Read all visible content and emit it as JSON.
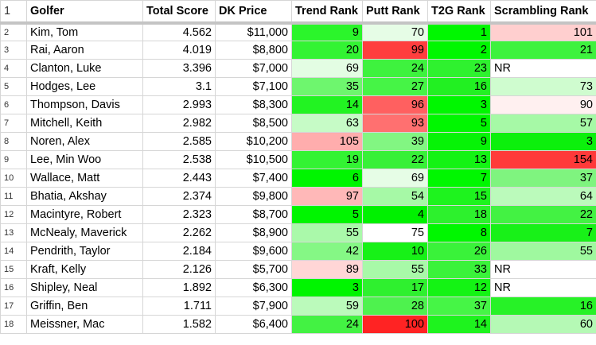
{
  "headers": {
    "row_number": "1",
    "golfer": "Golfer",
    "total_score": "Total Score",
    "dk_price": "DK Price",
    "trend_rank": "Trend Rank",
    "putt_rank": "Putt Rank",
    "t2g_rank": "T2G Rank",
    "scrambling_rank": "Scrambling Rank"
  },
  "colors": {
    "green_strong": "#00ff00",
    "red_strong": "#ff0000",
    "white": "#ffffff",
    "grid": "#d6d6d6"
  },
  "rows": [
    {
      "n": "2",
      "golfer": "Kim, Tom",
      "score": "4.562",
      "price": "$11,000",
      "trend": "9",
      "putt": "70",
      "t2g": "1",
      "scr": "101"
    },
    {
      "n": "3",
      "golfer": "Rai, Aaron",
      "score": "4.019",
      "price": "$8,800",
      "trend": "20",
      "putt": "99",
      "t2g": "2",
      "scr": "21"
    },
    {
      "n": "4",
      "golfer": "Clanton, Luke",
      "score": "3.396",
      "price": "$7,000",
      "trend": "69",
      "putt": "24",
      "t2g": "23",
      "scr": "NR"
    },
    {
      "n": "5",
      "golfer": "Hodges, Lee",
      "score": "3.1",
      "price": "$7,100",
      "trend": "35",
      "putt": "27",
      "t2g": "16",
      "scr": "73"
    },
    {
      "n": "6",
      "golfer": "Thompson, Davis",
      "score": "2.993",
      "price": "$8,300",
      "trend": "14",
      "putt": "96",
      "t2g": "3",
      "scr": "90"
    },
    {
      "n": "7",
      "golfer": "Mitchell, Keith",
      "score": "2.982",
      "price": "$8,500",
      "trend": "63",
      "putt": "93",
      "t2g": "5",
      "scr": "57"
    },
    {
      "n": "8",
      "golfer": "Noren, Alex",
      "score": "2.585",
      "price": "$10,200",
      "trend": "105",
      "putt": "39",
      "t2g": "9",
      "scr": "3"
    },
    {
      "n": "9",
      "golfer": "Lee, Min Woo",
      "score": "2.538",
      "price": "$10,500",
      "trend": "19",
      "putt": "22",
      "t2g": "13",
      "scr": "154"
    },
    {
      "n": "10",
      "golfer": "Wallace, Matt",
      "score": "2.443",
      "price": "$7,400",
      "trend": "6",
      "putt": "69",
      "t2g": "7",
      "scr": "37"
    },
    {
      "n": "11",
      "golfer": "Bhatia, Akshay",
      "score": "2.374",
      "price": "$9,800",
      "trend": "97",
      "putt": "54",
      "t2g": "15",
      "scr": "64"
    },
    {
      "n": "12",
      "golfer": "Macintyre, Robert",
      "score": "2.323",
      "price": "$8,700",
      "trend": "5",
      "putt": "4",
      "t2g": "18",
      "scr": "22"
    },
    {
      "n": "13",
      "golfer": "McNealy, Maverick",
      "score": "2.262",
      "price": "$8,900",
      "trend": "55",
      "putt": "75",
      "t2g": "8",
      "scr": "7"
    },
    {
      "n": "14",
      "golfer": "Pendrith, Taylor",
      "score": "2.184",
      "price": "$9,600",
      "trend": "42",
      "putt": "10",
      "t2g": "26",
      "scr": "55"
    },
    {
      "n": "15",
      "golfer": "Kraft, Kelly",
      "score": "2.126",
      "price": "$5,700",
      "trend": "89",
      "putt": "55",
      "t2g": "33",
      "scr": "NR"
    },
    {
      "n": "16",
      "golfer": "Shipley, Neal",
      "score": "1.892",
      "price": "$6,300",
      "trend": "3",
      "putt": "17",
      "t2g": "12",
      "scr": "NR"
    },
    {
      "n": "17",
      "golfer": "Griffin, Ben",
      "score": "1.711",
      "price": "$7,900",
      "trend": "59",
      "putt": "28",
      "t2g": "37",
      "scr": "16"
    },
    {
      "n": "18",
      "golfer": "Meissner, Mac",
      "score": "1.582",
      "price": "$6,400",
      "trend": "24",
      "putt": "100",
      "t2g": "14",
      "scr": "60"
    }
  ],
  "cell_fills": [
    {
      "trend": "#2bf52b",
      "putt": "#e6fde6",
      "t2g": "#00f700",
      "scr": "#ffcfcf"
    },
    {
      "trend": "#33f333",
      "putt": "#ff3e3e",
      "t2g": "#00f700",
      "scr": "#3ef23e"
    },
    {
      "trend": "#e3fde3",
      "putt": "#3ef23e",
      "t2g": "#2ff12f",
      "scr": "#ffffff"
    },
    {
      "trend": "#6ef66e",
      "putt": "#46f446",
      "t2g": "#22f022",
      "scr": "#cffccf"
    },
    {
      "trend": "#22f322",
      "putt": "#ff6060",
      "t2g": "#00f700",
      "scr": "#fff0f0"
    },
    {
      "trend": "#c6fbc6",
      "putt": "#ff7070",
      "t2g": "#00f700",
      "scr": "#a6f9a6"
    },
    {
      "trend": "#ffadad",
      "putt": "#82f682",
      "t2g": "#06f306",
      "scr": "#0cf00c"
    },
    {
      "trend": "#33f333",
      "putt": "#38f038",
      "t2g": "#14f314",
      "scr": "#ff3a3a"
    },
    {
      "trend": "#00f500",
      "putt": "#e6fde6",
      "t2g": "#00f700",
      "scr": "#7ff47f"
    },
    {
      "trend": "#ffb8b8",
      "putt": "#a6f9a6",
      "t2g": "#1ef31e",
      "scr": "#bbfabb"
    },
    {
      "trend": "#00f500",
      "putt": "#00f100",
      "t2g": "#2df12d",
      "scr": "#43f243"
    },
    {
      "trend": "#aaf9aa",
      "putt": "#ffffff",
      "t2g": "#00f700",
      "scr": "#18f118"
    },
    {
      "trend": "#85f785",
      "putt": "#17f117",
      "t2g": "#3af23a",
      "scr": "#9ff89f"
    },
    {
      "trend": "#ffd6d6",
      "putt": "#a8f9a8",
      "t2g": "#3af23a",
      "scr": "#ffffff"
    },
    {
      "trend": "#00f500",
      "putt": "#2ff02f",
      "t2g": "#14f314",
      "scr": "#ffffff"
    },
    {
      "trend": "#bbfabb",
      "putt": "#4ef24e",
      "t2g": "#46f546",
      "scr": "#27f227"
    },
    {
      "trend": "#43f243",
      "putt": "#ff2323",
      "t2g": "#1ef31e",
      "scr": "#b5f9b5"
    }
  ]
}
